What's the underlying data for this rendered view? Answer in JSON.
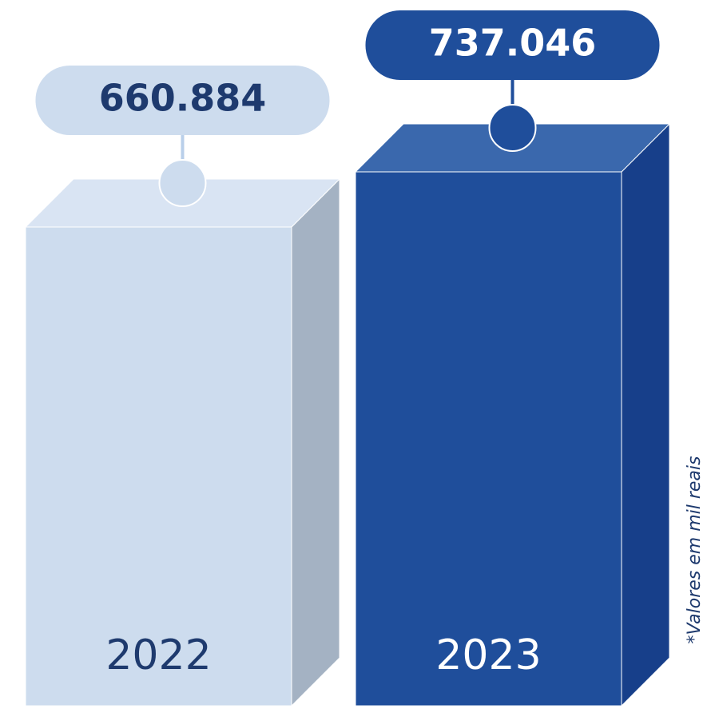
{
  "chart_data": {
    "type": "bar3d",
    "categories": [
      "2022",
      "2023"
    ],
    "values": [
      660884,
      737046
    ],
    "value_labels": [
      "660.884",
      "737.046"
    ],
    "colors": [
      "#cddcee",
      "#1f4e9b"
    ],
    "note": "*Valores em mil reais"
  }
}
